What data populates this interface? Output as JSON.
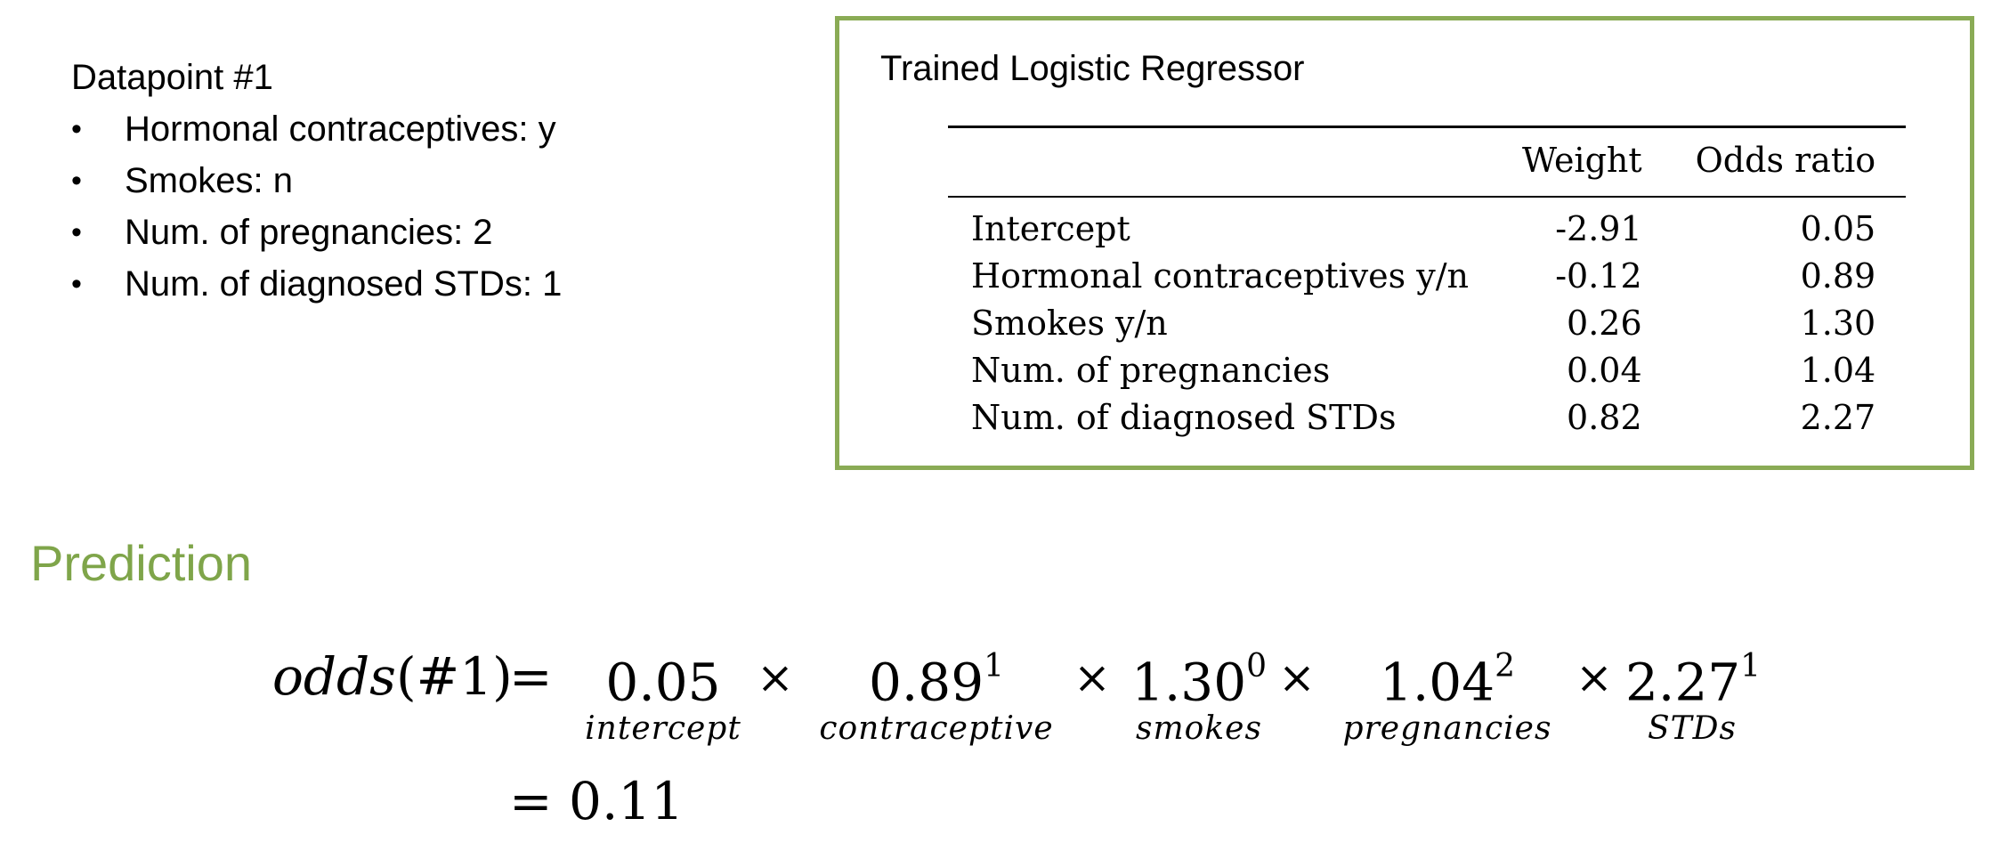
{
  "datapoint": {
    "title": "Datapoint #1",
    "items": [
      "Hormonal contraceptives: y",
      "Smokes: n",
      "Num. of pregnancies: 2",
      "Num. of diagnosed STDs: 1"
    ]
  },
  "panel": {
    "title": "Trained Logistic Regressor",
    "border_color": "#8aab55",
    "columns": [
      "Weight",
      "Odds ratio"
    ],
    "rows": [
      {
        "feature": "Intercept",
        "weight": "-2.91",
        "odds_ratio": "0.05"
      },
      {
        "feature": "Hormonal contraceptives y/n",
        "weight": "-0.12",
        "odds_ratio": "0.89"
      },
      {
        "feature": "Smokes y/n",
        "weight": "0.26",
        "odds_ratio": "1.30"
      },
      {
        "feature": "Num. of pregnancies",
        "weight": "0.04",
        "odds_ratio": "1.04"
      },
      {
        "feature": "Num. of diagnosed STDs",
        "weight": "0.82",
        "odds_ratio": "2.27"
      }
    ]
  },
  "prediction": {
    "heading": "Prediction",
    "heading_color": "#7fa54a",
    "lhs_func": "odds",
    "lhs_arg": "#1",
    "equals": "=",
    "times": "×",
    "factors": [
      {
        "value": "0.05",
        "exponent": "",
        "label": "intercept"
      },
      {
        "value": "0.89",
        "exponent": "1",
        "label": "contraceptive"
      },
      {
        "value": "1.30",
        "exponent": "0",
        "label": "smokes"
      },
      {
        "value": "1.04",
        "exponent": "2",
        "label": "pregnancies"
      },
      {
        "value": "2.27",
        "exponent": "1",
        "label": "STDs"
      }
    ],
    "result": "0.11"
  }
}
